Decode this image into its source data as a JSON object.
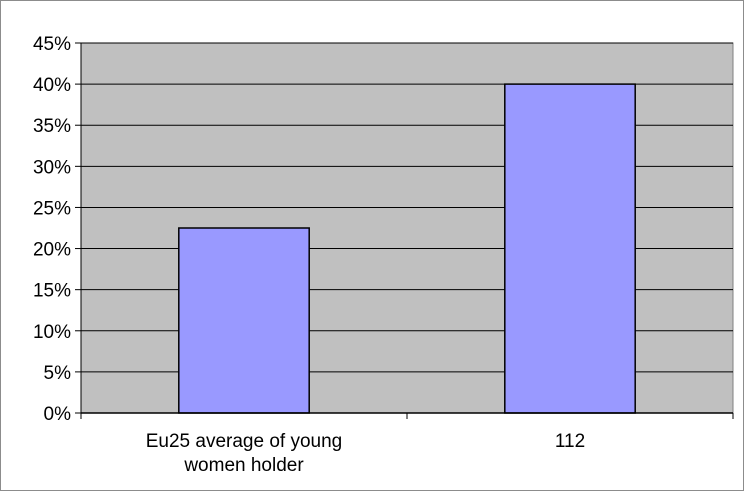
{
  "chart_data": {
    "type": "bar",
    "categories": [
      [
        "Eu25 average of young",
        "women holder"
      ],
      [
        "112"
      ]
    ],
    "values": [
      22.5,
      40
    ],
    "ylim": [
      0,
      45
    ],
    "yticks": [
      "0%",
      "5%",
      "10%",
      "15%",
      "20%",
      "25%",
      "30%",
      "35%",
      "40%",
      "45%"
    ],
    "ytick_values": [
      0,
      5,
      10,
      15,
      20,
      25,
      30,
      35,
      40,
      45
    ],
    "grid": true,
    "legend": "none",
    "colors": {
      "bar_fill": "#9999ff",
      "bar_stroke": "#000000",
      "plot_background": "#c0c0c0",
      "grid": "#000000"
    }
  }
}
